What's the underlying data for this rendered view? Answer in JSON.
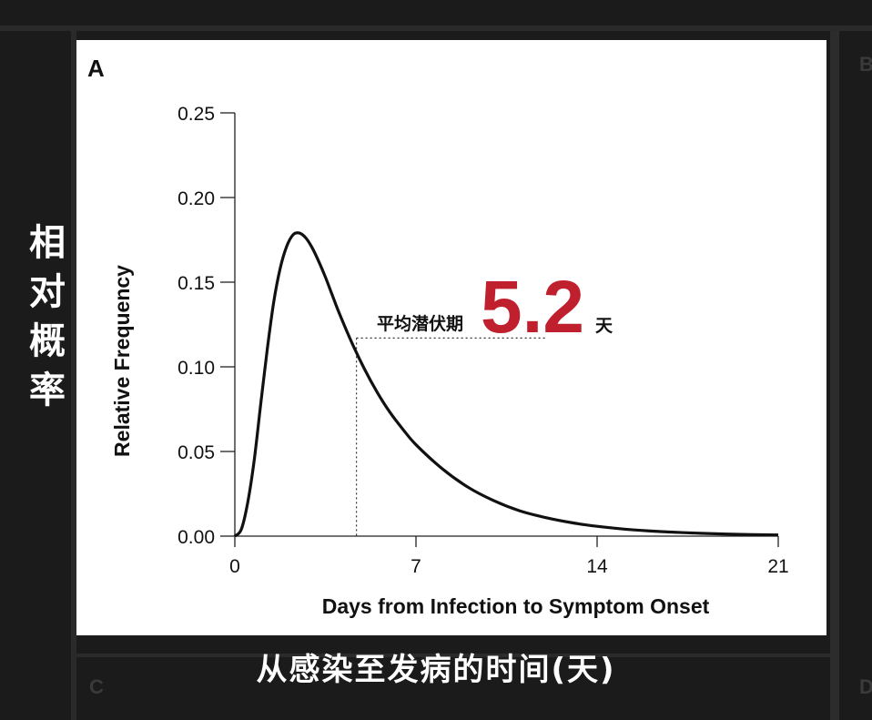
{
  "panel_letters": {
    "a": "A",
    "b": "B",
    "c": "C",
    "d": "D"
  },
  "overlay": {
    "vertical_label_chars": [
      "相",
      "对",
      "概",
      "率"
    ],
    "bottom_label": "从感染至发病的时间(天)"
  },
  "annotation": {
    "prefix": "平均潜伏期",
    "value": "5.2",
    "unit": "天",
    "value_color": "#c0202e"
  },
  "chart_data": {
    "type": "line",
    "xlabel": "Days from Infection to Symptom Onset",
    "ylabel": "Relative Frequency",
    "xlim": [
      0,
      21
    ],
    "ylim": [
      0,
      0.25
    ],
    "xticks": [
      0,
      7,
      14,
      21
    ],
    "xtick_labels": [
      "0",
      "7",
      "14",
      "21"
    ],
    "yticks": [
      0,
      0.05,
      0.1,
      0.15,
      0.2,
      0.25
    ],
    "ytick_labels": [
      "0.00",
      "0.05",
      "0.10",
      "0.15",
      "0.20",
      "0.25"
    ],
    "grid": false,
    "series": [
      {
        "color": "#111111",
        "x": [
          0,
          0.25,
          0.5,
          0.75,
          1.0,
          1.25,
          1.5,
          1.75,
          2.0,
          2.25,
          2.5,
          2.75,
          3.0,
          3.25,
          3.5,
          3.75,
          4.0,
          4.5,
          5.0,
          5.5,
          6.0,
          6.5,
          7.0,
          8.0,
          9.0,
          10.0,
          11.0,
          12.0,
          13.0,
          14.0,
          15.0,
          16.0,
          17.0,
          18.0,
          19.0,
          20.0,
          21.0
        ],
        "y": [
          0.0,
          0.004,
          0.02,
          0.045,
          0.078,
          0.11,
          0.138,
          0.158,
          0.171,
          0.178,
          0.179,
          0.176,
          0.17,
          0.162,
          0.153,
          0.143,
          0.133,
          0.115,
          0.099,
          0.085,
          0.073,
          0.063,
          0.054,
          0.04,
          0.029,
          0.021,
          0.015,
          0.011,
          0.008,
          0.0058,
          0.0042,
          0.0031,
          0.0023,
          0.0017,
          0.0012,
          0.0009,
          0.0007
        ]
      }
    ],
    "reference": {
      "x": 4.7,
      "y": 0.117,
      "x_end": 12.0
    }
  }
}
